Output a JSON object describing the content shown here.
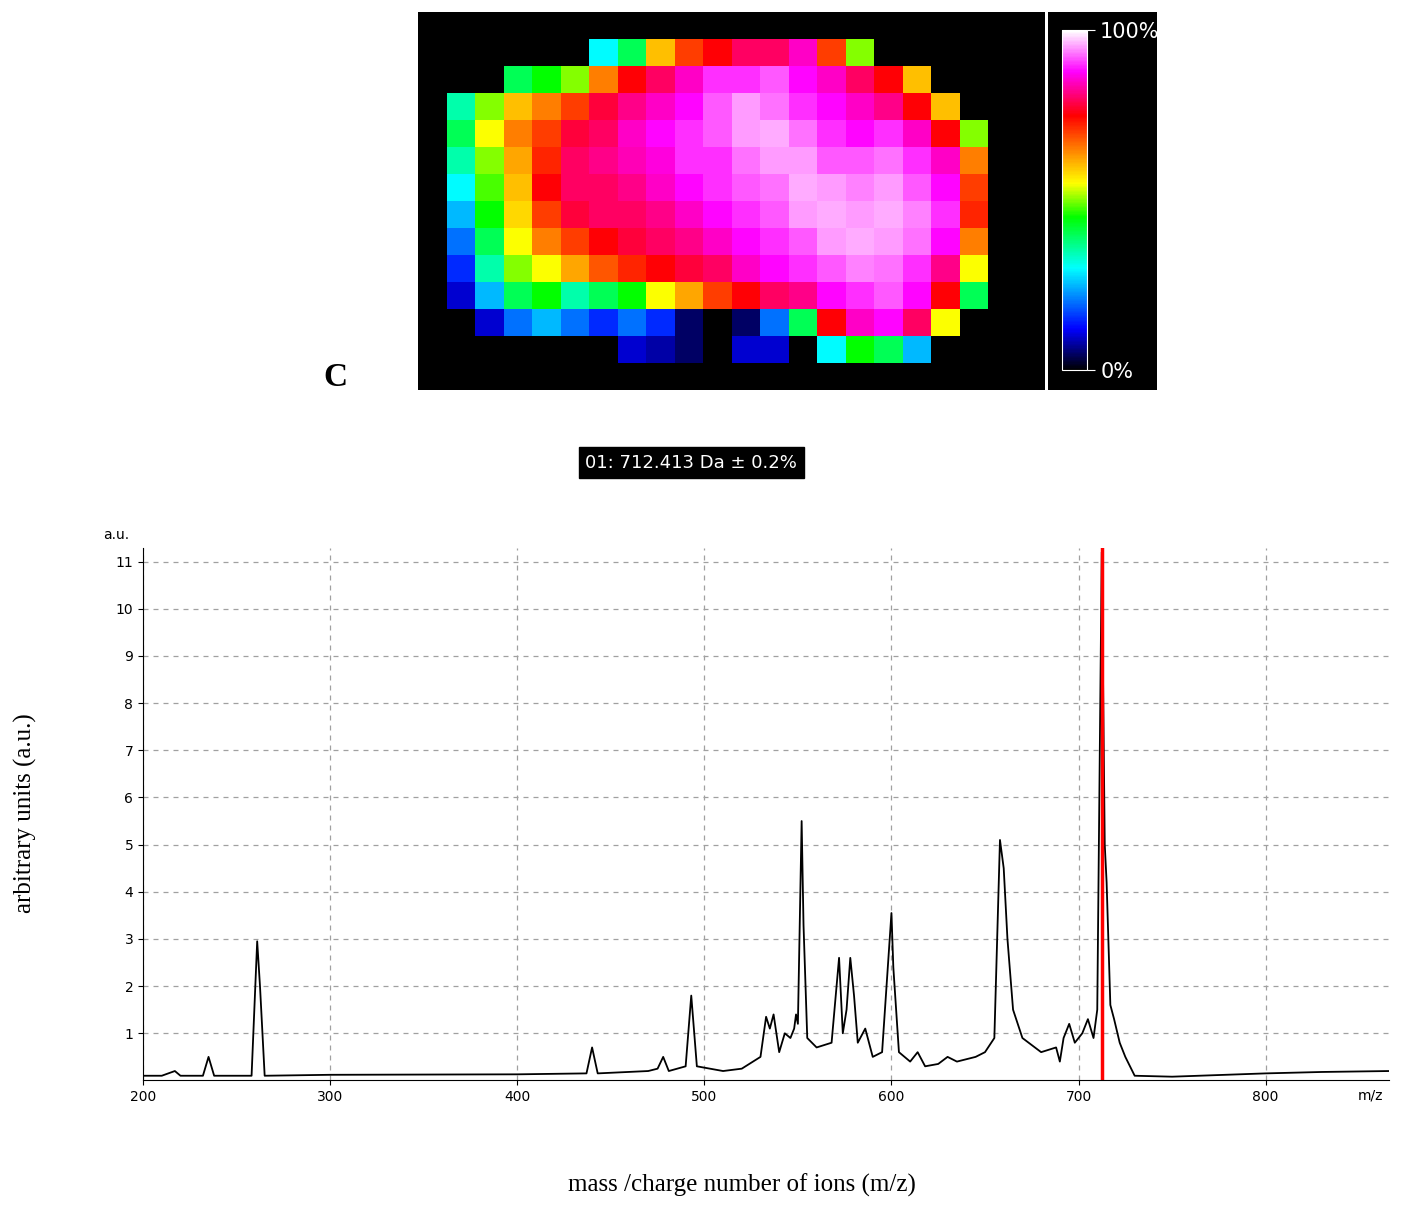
{
  "chart_data": [
    {
      "type": "heatmap",
      "annotations": [
        "C"
      ],
      "cells": [
        [
          null,
          null,
          null,
          null,
          null,
          30,
          40,
          60,
          70,
          75,
          80,
          80,
          85,
          70,
          50,
          null,
          null,
          null,
          null,
          null
        ],
        [
          null,
          null,
          40,
          45,
          50,
          65,
          75,
          80,
          85,
          90,
          90,
          92,
          88,
          85,
          80,
          75,
          60,
          null,
          null,
          null
        ],
        [
          35,
          50,
          60,
          65,
          70,
          78,
          82,
          85,
          88,
          92,
          95,
          93,
          90,
          88,
          85,
          82,
          75,
          60,
          null,
          null
        ],
        [
          40,
          55,
          65,
          70,
          78,
          80,
          85,
          88,
          90,
          92,
          95,
          96,
          93,
          90,
          88,
          90,
          85,
          75,
          50,
          null
        ],
        [
          35,
          50,
          62,
          72,
          80,
          82,
          84,
          86,
          90,
          90,
          93,
          95,
          95,
          92,
          92,
          93,
          90,
          85,
          65,
          null
        ],
        [
          30,
          48,
          60,
          75,
          80,
          80,
          82,
          85,
          88,
          90,
          92,
          93,
          96,
          95,
          94,
          95,
          92,
          88,
          70,
          null
        ],
        [
          25,
          45,
          58,
          70,
          78,
          80,
          80,
          82,
          85,
          88,
          90,
          92,
          95,
          96,
          95,
          96,
          94,
          90,
          72,
          null
        ],
        [
          20,
          40,
          55,
          65,
          70,
          75,
          78,
          80,
          82,
          85,
          88,
          90,
          92,
          95,
          96,
          95,
          93,
          88,
          65,
          null
        ],
        [
          15,
          35,
          50,
          55,
          62,
          68,
          72,
          75,
          78,
          80,
          85,
          88,
          90,
          92,
          94,
          93,
          90,
          82,
          55,
          null
        ],
        [
          10,
          25,
          40,
          45,
          35,
          40,
          45,
          55,
          62,
          70,
          75,
          80,
          82,
          88,
          90,
          92,
          88,
          75,
          40,
          null
        ],
        [
          null,
          10,
          20,
          25,
          20,
          15,
          20,
          15,
          5,
          0,
          5,
          20,
          40,
          75,
          85,
          88,
          80,
          55,
          null,
          null
        ],
        [
          null,
          null,
          null,
          null,
          null,
          null,
          10,
          8,
          5,
          0,
          10,
          10,
          null,
          30,
          45,
          40,
          25,
          null,
          null,
          null
        ]
      ],
      "colorbar": {
        "range": [
          0,
          100
        ],
        "ticks": [
          {
            "value": 0,
            "label": "0%"
          },
          {
            "value": 100,
            "label": "100%"
          }
        ]
      }
    },
    {
      "type": "line",
      "title": "01: 712.413 Da ± 0.2%",
      "x_label": "mass /charge number of ions (m/z)",
      "y_label": "arbitrary units (a.u.)",
      "annotations": [
        "a.u.",
        "m/z"
      ],
      "color": "#000000",
      "marker_line": {
        "value": 712.413,
        "color": "#ff0000"
      },
      "x": [
        200,
        210,
        217,
        220,
        232,
        235,
        238,
        258,
        261,
        262.5,
        265,
        300,
        400,
        437,
        440,
        443,
        470,
        475,
        478,
        481,
        490,
        493,
        496,
        510,
        520,
        530,
        533,
        535,
        537,
        540,
        543,
        546,
        548,
        549,
        550,
        552,
        553,
        555,
        560,
        568,
        572,
        574,
        576,
        578,
        580,
        582,
        586,
        590,
        595,
        600,
        601,
        604,
        610,
        614,
        618,
        625,
        630,
        635,
        640,
        645,
        650,
        655,
        658,
        660,
        662,
        665,
        670,
        680,
        688,
        690,
        692,
        695,
        698,
        702,
        705,
        708,
        710,
        712.4,
        714,
        715,
        717,
        719,
        722,
        725,
        730,
        750,
        800,
        830,
        866
      ],
      "values": [
        0.1,
        0.1,
        0.2,
        0.1,
        0.1,
        0.5,
        0.1,
        0.1,
        2.95,
        2.0,
        0.1,
        0.12,
        0.13,
        0.15,
        0.7,
        0.15,
        0.2,
        0.25,
        0.5,
        0.2,
        0.3,
        1.8,
        0.3,
        0.2,
        0.25,
        0.5,
        1.35,
        1.1,
        1.4,
        0.6,
        1.0,
        0.9,
        1.1,
        1.4,
        1.2,
        5.5,
        3.3,
        0.9,
        0.7,
        0.8,
        2.6,
        1.0,
        1.5,
        2.6,
        1.8,
        0.8,
        1.1,
        0.5,
        0.6,
        3.55,
        2.4,
        0.6,
        0.4,
        0.6,
        0.3,
        0.35,
        0.5,
        0.4,
        0.45,
        0.5,
        0.6,
        0.9,
        5.1,
        4.5,
        3.0,
        1.5,
        0.9,
        0.6,
        0.7,
        0.4,
        0.9,
        1.2,
        0.8,
        1.0,
        1.3,
        0.9,
        1.5,
        11.2,
        5.0,
        4.2,
        1.6,
        1.3,
        0.8,
        0.5,
        0.1,
        0.08,
        0.15,
        0.18,
        0.2
      ],
      "xlim": [
        200,
        866
      ],
      "xticks": [
        200,
        300,
        400,
        500,
        600,
        700,
        800
      ],
      "ylim": [
        0,
        11.3
      ],
      "yticks": [
        1,
        2,
        3,
        4,
        5,
        6,
        7,
        8,
        9,
        10,
        11
      ],
      "grid": true
    }
  ]
}
